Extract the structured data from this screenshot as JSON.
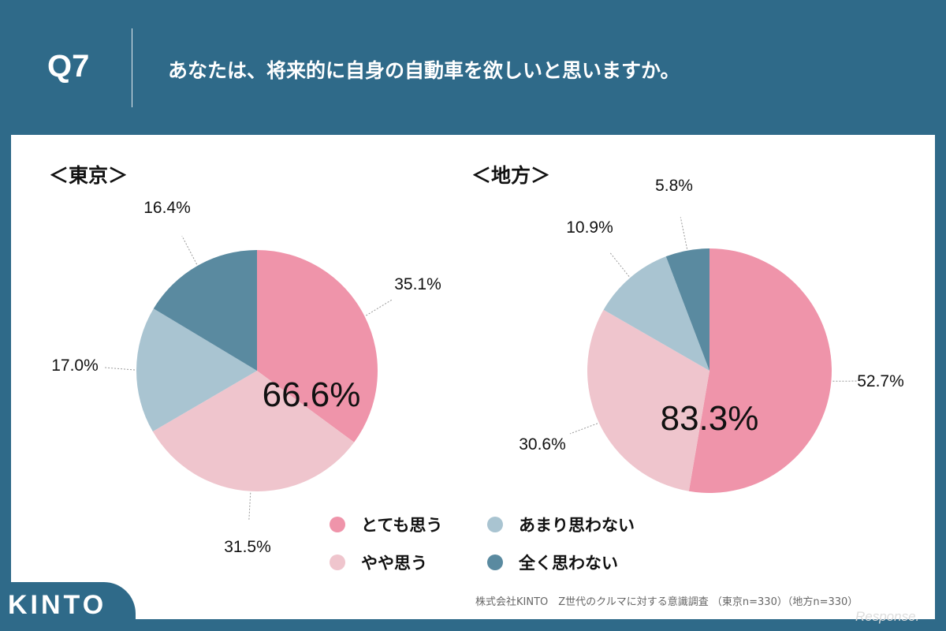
{
  "header": {
    "q": "Q7",
    "title": "あなたは、将来的に自身の自動車を欲しいと思いますか。"
  },
  "chart_data": [
    {
      "type": "pie",
      "title": "＜東京＞",
      "categories": [
        "とても思う",
        "やや思う",
        "あまり思わない",
        "全く思わない"
      ],
      "values": [
        35.1,
        31.5,
        17.0,
        16.4
      ],
      "labels": [
        "35.1%",
        "31.5%",
        "17.0%",
        "16.4%"
      ],
      "center_label": "66.6%"
    },
    {
      "type": "pie",
      "title": "＜地方＞",
      "categories": [
        "とても思う",
        "やや思う",
        "あまり思わない",
        "全く思わない"
      ],
      "values": [
        52.7,
        30.6,
        10.9,
        5.8
      ],
      "labels": [
        "52.7%",
        "30.6%",
        "10.9%",
        "5.8%"
      ],
      "center_label": "83.3%"
    }
  ],
  "colors": [
    "#ef94aa",
    "#efc5cd",
    "#a9c4d1",
    "#5a8aa0"
  ],
  "legend": [
    "とても思う",
    "やや思う",
    "あまり思わない",
    "全く思わない"
  ],
  "footer": {
    "logo": "KINTO",
    "source": "株式会社KINTO　Z世代のクルマに対する意識調査 （東京n=330）（地方n=330）",
    "watermark": "Response."
  }
}
